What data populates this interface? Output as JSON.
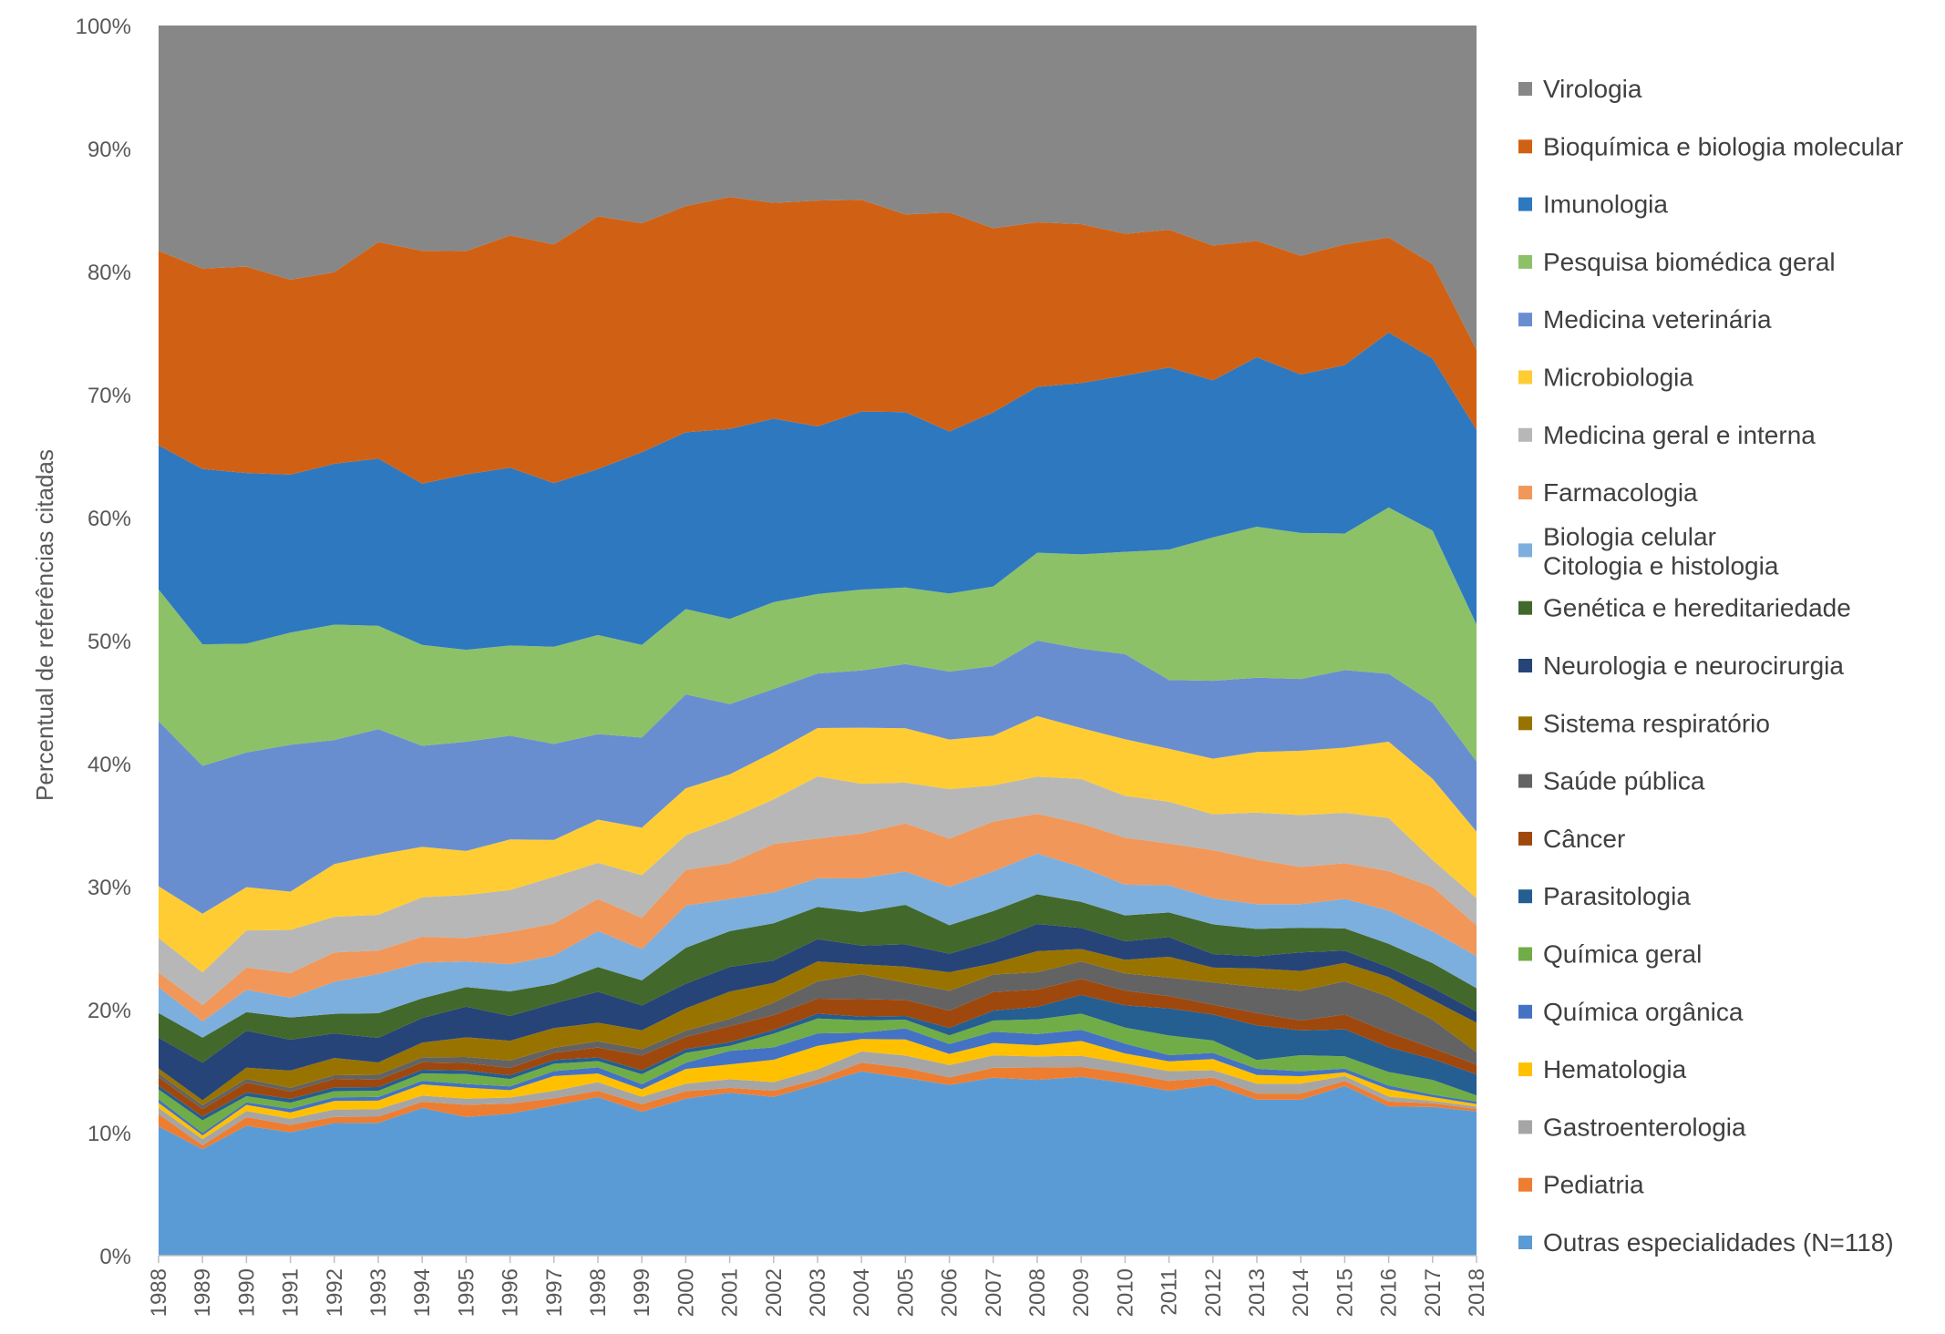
{
  "chart_data": {
    "type": "area",
    "stacked": true,
    "normalized": true,
    "xlabel": "",
    "ylabel": "Percentual de referências citadas",
    "ylim": [
      0,
      100
    ],
    "y_ticks": [
      "0%",
      "10%",
      "20%",
      "30%",
      "40%",
      "50%",
      "60%",
      "70%",
      "80%",
      "90%",
      "100%"
    ],
    "legend_position": "right",
    "x": [
      "1988",
      "1989",
      "1990",
      "1991",
      "1992",
      "1993",
      "1994",
      "1995",
      "1996",
      "1997",
      "1998",
      "1999",
      "2000",
      "2001",
      "2002",
      "2003",
      "2004",
      "2005",
      "2006",
      "2007",
      "2008",
      "2009",
      "2010",
      "2011",
      "2012",
      "2013",
      "2014",
      "2015",
      "2016",
      "2017",
      "2018"
    ],
    "series": [
      {
        "name": "Outras especialidades (N=118)",
        "color": "#5B9BD5",
        "values": [
          10.5,
          8.5,
          10.5,
          10.0,
          10.8,
          10.8,
          12.0,
          11.3,
          11.5,
          12.2,
          12.8,
          11.5,
          12.7,
          13.2,
          12.8,
          13.8,
          14.8,
          14.4,
          13.8,
          14.3,
          14.2,
          14.4,
          14.0,
          13.4,
          13.8,
          12.6,
          12.6,
          13.8,
          12.1,
          12.1,
          11.7
        ]
      },
      {
        "name": "Pediatria",
        "color": "#ED7D31",
        "values": [
          1.0,
          0.3,
          0.7,
          0.6,
          0.5,
          0.5,
          0.5,
          1.0,
          0.8,
          0.6,
          0.5,
          0.6,
          0.6,
          0.4,
          0.5,
          0.4,
          0.7,
          0.8,
          0.6,
          0.8,
          1.0,
          0.8,
          0.8,
          0.8,
          0.6,
          0.5,
          0.5,
          0.4,
          0.4,
          0.3,
          0.2
        ]
      },
      {
        "name": "Gastroenterologia",
        "color": "#A5A5A5",
        "values": [
          0.5,
          0.5,
          0.5,
          0.5,
          0.6,
          0.6,
          0.5,
          0.5,
          0.5,
          0.6,
          0.7,
          0.6,
          0.6,
          0.7,
          0.7,
          0.8,
          0.9,
          1.0,
          1.0,
          1.0,
          0.9,
          0.9,
          0.8,
          0.8,
          0.6,
          0.8,
          0.8,
          0.4,
          0.4,
          0.2,
          0.2
        ]
      },
      {
        "name": "Hematologia",
        "color": "#FFC000",
        "values": [
          0.4,
          0.3,
          0.5,
          0.5,
          0.7,
          0.7,
          0.9,
          0.9,
          0.6,
          1.2,
          0.7,
          0.6,
          1.2,
          1.2,
          1.8,
          1.9,
          1.0,
          1.3,
          0.9,
          1.0,
          0.9,
          1.2,
          0.8,
          0.8,
          0.9,
          0.7,
          0.6,
          0.3,
          0.6,
          0.3,
          0.2
        ]
      },
      {
        "name": "Química orgânica",
        "color": "#4472C4",
        "values": [
          0.3,
          0.2,
          0.2,
          0.3,
          0.3,
          0.3,
          0.3,
          0.3,
          0.3,
          0.4,
          0.5,
          0.4,
          0.5,
          1.1,
          1.0,
          1.0,
          0.5,
          0.9,
          0.8,
          0.9,
          0.9,
          0.9,
          0.8,
          0.5,
          0.5,
          0.5,
          0.4,
          0.3,
          0.3,
          0.2,
          0.2
        ]
      },
      {
        "name": "Química geral",
        "color": "#70AD47",
        "values": [
          0.8,
          1.0,
          0.5,
          0.5,
          0.5,
          0.5,
          0.6,
          0.8,
          0.6,
          0.6,
          0.5,
          0.8,
          0.8,
          0.4,
          1.1,
          1.2,
          1.0,
          0.7,
          0.7,
          0.9,
          1.2,
          1.3,
          1.3,
          1.6,
          1.0,
          0.7,
          1.3,
          1.0,
          1.1,
          1.2,
          0.5
        ]
      },
      {
        "name": "Parasitologia",
        "color": "#255E91",
        "values": [
          0.3,
          0.3,
          0.3,
          0.3,
          0.3,
          0.3,
          0.3,
          0.3,
          0.3,
          0.3,
          0.3,
          0.3,
          0.3,
          0.3,
          0.3,
          0.4,
          0.3,
          0.3,
          0.6,
          0.8,
          1.0,
          1.5,
          1.8,
          2.2,
          2.1,
          2.8,
          2.0,
          2.2,
          2.0,
          1.7,
          1.7
        ]
      },
      {
        "name": "Câncer",
        "color": "#9E480E",
        "values": [
          0.7,
          0.6,
          0.8,
          0.6,
          0.7,
          0.6,
          0.6,
          0.6,
          0.6,
          0.6,
          0.8,
          1.2,
          1.0,
          1.3,
          1.2,
          1.2,
          1.4,
          1.3,
          1.4,
          1.5,
          1.4,
          1.3,
          1.2,
          1.0,
          0.8,
          1.0,
          0.8,
          1.2,
          1.2,
          0.9,
          0.8
        ]
      },
      {
        "name": "Saúde pública",
        "color": "#636363",
        "values": [
          0.3,
          0.3,
          0.3,
          0.3,
          0.3,
          0.4,
          0.4,
          0.5,
          0.6,
          0.4,
          0.5,
          0.5,
          0.5,
          0.6,
          1.0,
          1.4,
          2.0,
          1.4,
          1.6,
          1.4,
          1.4,
          1.4,
          1.4,
          1.5,
          1.8,
          2.1,
          2.4,
          2.7,
          2.9,
          2.3,
          1.0
        ]
      },
      {
        "name": "Sistema respiratório",
        "color": "#997300",
        "values": [
          0.4,
          0.4,
          0.9,
          1.4,
          1.4,
          1.0,
          1.2,
          1.6,
          1.6,
          1.6,
          1.5,
          1.5,
          1.8,
          2.2,
          1.6,
          1.6,
          0.8,
          1.3,
          1.5,
          0.9,
          1.7,
          1.0,
          1.1,
          1.7,
          1.2,
          1.5,
          1.6,
          1.5,
          1.6,
          1.6,
          2.4
        ]
      },
      {
        "name": "Neurologia e neurocirurgia",
        "color": "#264478",
        "values": [
          2.5,
          3.0,
          3.0,
          2.5,
          2.0,
          2.0,
          2.0,
          2.5,
          2.0,
          2.0,
          2.5,
          2.0,
          2.0,
          2.0,
          1.8,
          1.8,
          1.5,
          1.8,
          1.5,
          1.8,
          2.2,
          1.7,
          1.5,
          1.6,
          1.1,
          1.0,
          1.5,
          1.0,
          0.8,
          1.0,
          0.9
        ]
      },
      {
        "name": "Genética e hereditariedade",
        "color": "#43682B",
        "values": [
          2.0,
          2.0,
          1.5,
          1.8,
          1.6,
          2.0,
          1.6,
          1.6,
          2.0,
          1.6,
          2.0,
          2.0,
          2.9,
          2.9,
          3.0,
          2.6,
          2.7,
          3.2,
          2.3,
          2.4,
          2.4,
          2.1,
          2.1,
          2.0,
          2.4,
          2.2,
          2.0,
          1.8,
          1.9,
          2.0,
          1.9
        ]
      },
      {
        "name": "Biologia celular\nCitologia e histologia",
        "color": "#7CAFDD",
        "values": [
          2.1,
          1.3,
          1.8,
          1.6,
          2.6,
          3.2,
          2.9,
          2.1,
          2.2,
          2.3,
          2.9,
          2.5,
          3.4,
          2.6,
          2.5,
          2.3,
          2.7,
          2.7,
          3.1,
          3.2,
          3.3,
          2.8,
          2.5,
          2.2,
          2.1,
          2.0,
          1.9,
          2.4,
          2.7,
          2.6,
          2.6
        ]
      },
      {
        "name": "Farmacologia",
        "color": "#F1975A",
        "values": [
          1.2,
          1.3,
          1.8,
          2.0,
          2.4,
          1.9,
          2.1,
          1.9,
          2.6,
          2.6,
          2.6,
          2.5,
          2.9,
          2.9,
          3.9,
          3.2,
          3.6,
          3.9,
          3.9,
          4.0,
          3.2,
          3.5,
          3.8,
          3.4,
          3.9,
          3.6,
          3.0,
          2.9,
          3.2,
          3.6,
          2.5
        ]
      },
      {
        "name": "Medicina geral e interna",
        "color": "#B7B7B7",
        "values": [
          2.8,
          2.6,
          3.0,
          3.5,
          2.9,
          2.9,
          3.2,
          3.5,
          3.4,
          3.8,
          2.9,
          3.4,
          2.8,
          3.6,
          3.6,
          5.0,
          4.0,
          3.3,
          4.0,
          2.9,
          3.0,
          3.6,
          3.4,
          3.4,
          2.9,
          3.8,
          4.2,
          4.1,
          4.3,
          2.2,
          2.2
        ]
      },
      {
        "name": "Microbiologia",
        "color": "#FFCD33",
        "values": [
          4.2,
          4.7,
          3.5,
          3.1,
          4.3,
          4.9,
          4.1,
          3.6,
          4.1,
          3.0,
          3.5,
          3.8,
          3.8,
          3.6,
          3.8,
          3.9,
          4.5,
          4.4,
          4.0,
          4.0,
          4.9,
          4.1,
          4.6,
          4.3,
          4.5,
          4.9,
          5.2,
          5.3,
          6.2,
          6.6,
          5.4
        ]
      },
      {
        "name": "Medicina veterinária",
        "color": "#698ED0",
        "values": [
          13.4,
          11.8,
          10.9,
          11.9,
          10.1,
          10.2,
          8.2,
          8.9,
          8.4,
          7.8,
          6.9,
          7.2,
          7.6,
          5.7,
          5.1,
          4.4,
          4.6,
          5.2,
          5.5,
          5.6,
          6.1,
          6.4,
          6.9,
          5.6,
          6.3,
          6.0,
          5.8,
          6.3,
          5.5,
          6.2,
          5.7
        ]
      },
      {
        "name": "Pesquisa biomédica geral",
        "color": "#8CC168",
        "values": [
          10.7,
          9.7,
          8.8,
          9.1,
          9.4,
          8.4,
          8.2,
          7.5,
          7.3,
          7.9,
          8.0,
          7.4,
          6.9,
          6.9,
          7.0,
          6.4,
          6.5,
          6.2,
          6.3,
          6.4,
          7.1,
          7.6,
          8.3,
          10.6,
          11.6,
          12.2,
          11.8,
          11.1,
          13.5,
          14.0,
          11.1
        ]
      },
      {
        "name": "Imunologia",
        "color": "#2E78C0",
        "values": [
          11.7,
          14.0,
          13.8,
          12.8,
          13.1,
          13.6,
          13.1,
          14.3,
          14.4,
          13.3,
          13.4,
          15.4,
          14.3,
          15.4,
          14.8,
          13.5,
          14.3,
          14.2,
          13.1,
          14.0,
          13.4,
          13.8,
          14.3,
          14.8,
          12.7,
          13.7,
          12.8,
          13.7,
          14.2,
          14.0,
          15.8
        ]
      },
      {
        "name": "Bioquímica e biologia molecular",
        "color": "#D06114",
        "values": [
          15.8,
          16.0,
          16.7,
          15.8,
          15.6,
          17.6,
          18.9,
          18.2,
          18.8,
          19.4,
          20.4,
          18.3,
          18.3,
          18.8,
          17.4,
          18.2,
          17.0,
          16.0,
          17.7,
          14.8,
          13.3,
          12.8,
          11.5,
          11.2,
          10.9,
          9.4,
          9.6,
          9.8,
          7.7,
          7.7,
          6.5
        ]
      },
      {
        "name": "Virologia",
        "color": "#878787",
        "values": [
          18.3,
          19.4,
          19.5,
          20.6,
          20.1,
          17.6,
          18.3,
          18.4,
          17.0,
          17.8,
          15.4,
          15.8,
          14.6,
          13.9,
          14.3,
          14.1,
          14.0,
          15.3,
          15.1,
          16.3,
          15.9,
          16.0,
          16.9,
          16.6,
          17.8,
          17.4,
          18.6,
          17.8,
          17.2,
          19.4,
          26.3
        ]
      }
    ]
  }
}
